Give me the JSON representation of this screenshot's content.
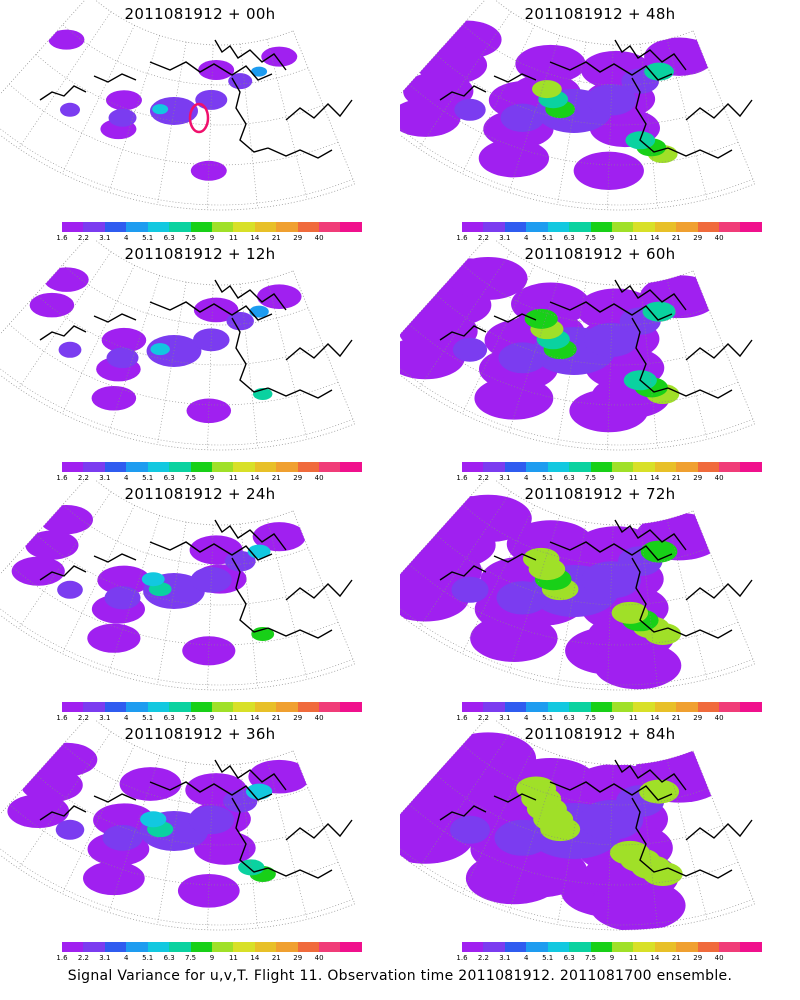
{
  "panels": [
    {
      "title": "2011081912 + 00h",
      "lead": 0
    },
    {
      "title": "2011081912 + 48h",
      "lead": 48
    },
    {
      "title": "2011081912 + 12h",
      "lead": 12
    },
    {
      "title": "2011081912 + 60h",
      "lead": 60
    },
    {
      "title": "2011081912 + 24h",
      "lead": 24
    },
    {
      "title": "2011081912 + 72h",
      "lead": 72
    },
    {
      "title": "2011081912 + 36h",
      "lead": 36
    },
    {
      "title": "2011081912 + 84h",
      "lead": 84
    }
  ],
  "colorbar": {
    "colors": [
      "#a020f0",
      "#7b3cf0",
      "#2f5cf0",
      "#1e9cf0",
      "#12c8e0",
      "#0ad2a0",
      "#18d018",
      "#a0e028",
      "#d8e028",
      "#e8c028",
      "#f0a030",
      "#f06a3c",
      "#f03c78",
      "#f0108c"
    ],
    "tick_labels": [
      "1.6",
      "2.2",
      "3.1",
      "4",
      "5.1",
      "6.3",
      "7.5",
      "9",
      "11",
      "14",
      "21",
      "29",
      "40"
    ]
  },
  "footer": "Signal Variance for u,v,T. Flight 11. Observation time 2011081912. 2011081700 ensemble."
}
